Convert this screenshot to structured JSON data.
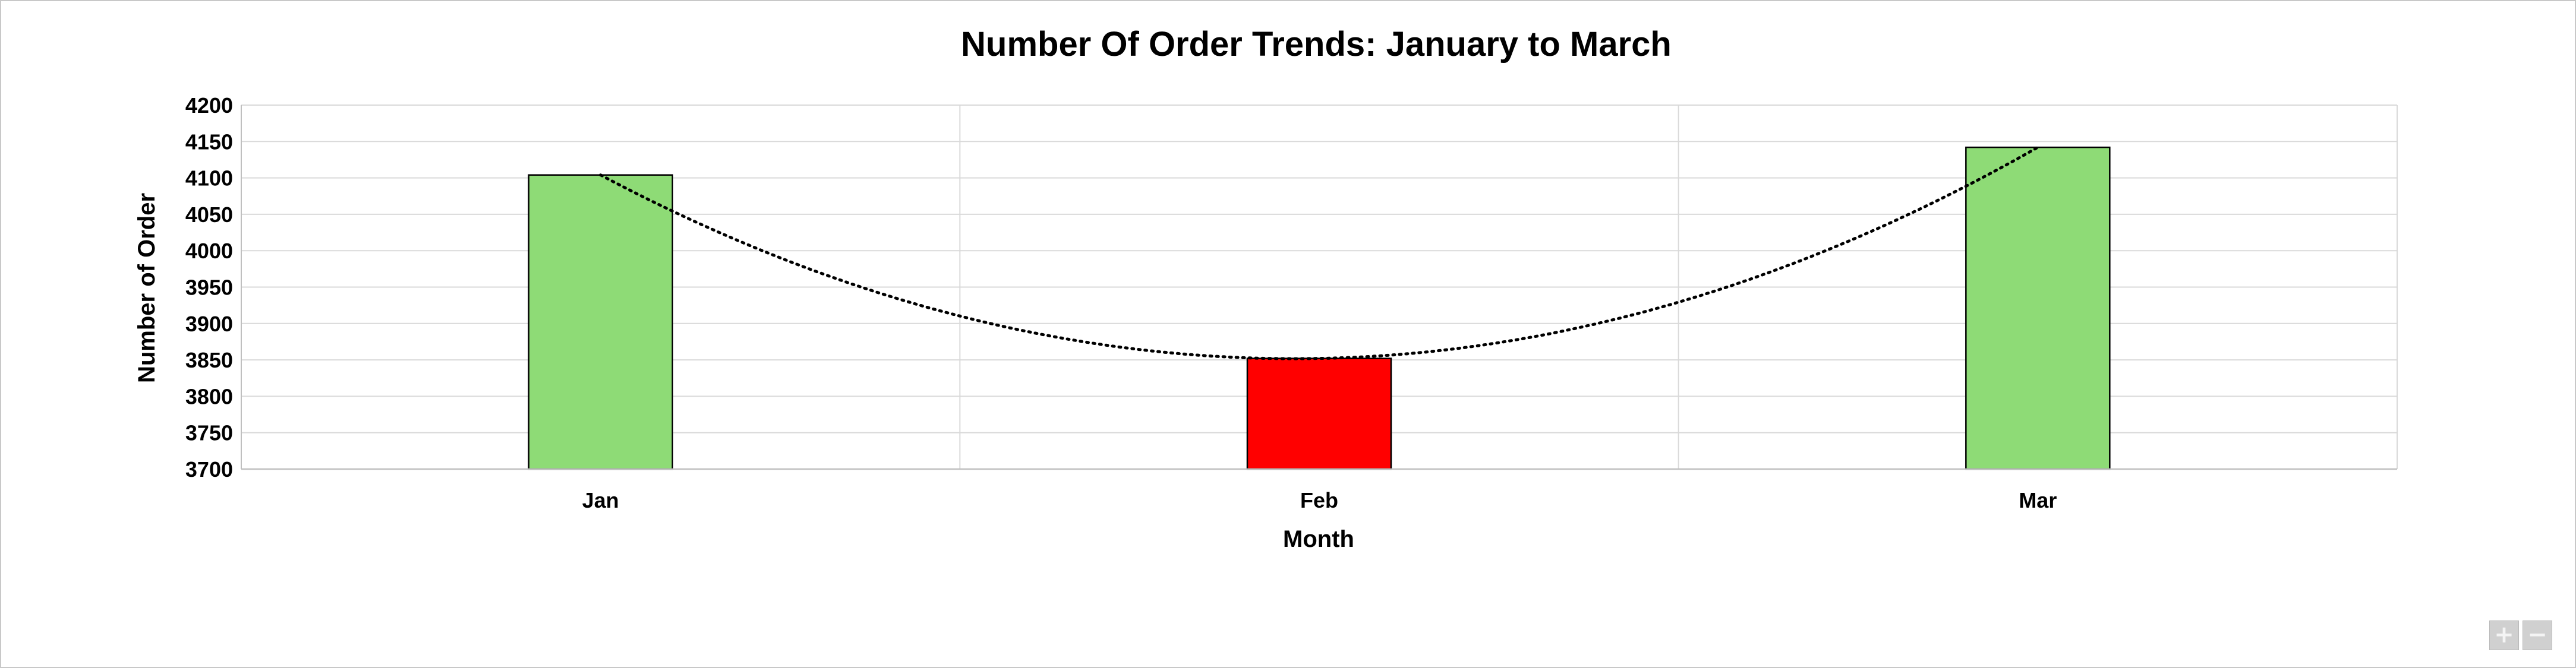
{
  "chart_data": {
    "type": "bar",
    "title": "Number Of Order Trends: January to March",
    "xlabel": "Month",
    "ylabel": "Number of Order",
    "categories": [
      "Jan",
      "Feb",
      "Mar"
    ],
    "values": [
      4104,
      3852,
      4142
    ],
    "bar_colors": [
      "#8EDB76",
      "#FF0000",
      "#8EDB76"
    ],
    "ylim": [
      3700,
      4200
    ],
    "yticks": [
      "4200",
      "4150",
      "4100",
      "4050",
      "4000",
      "3950",
      "3900",
      "3850",
      "3800",
      "3750",
      "3700"
    ],
    "trendline": {
      "type": "polynomial",
      "style": "dotted",
      "color": "#000000"
    },
    "grid": true
  },
  "controls": {
    "zoom_in_icon": "plus-icon",
    "zoom_out_icon": "minus-icon",
    "zoom_in_glyph": "+",
    "zoom_out_glyph": "−"
  }
}
